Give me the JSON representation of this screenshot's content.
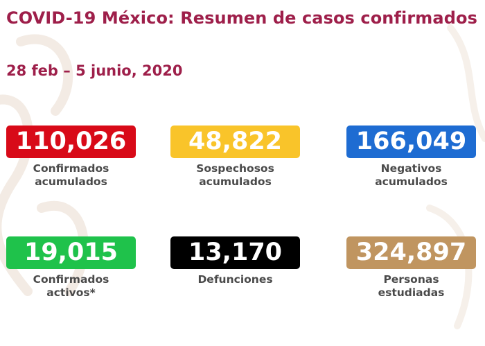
{
  "header": {
    "title": "COVID-19 México: Resumen de casos confirmados",
    "date_range": "28 feb – 5 junio, 2020"
  },
  "stats": [
    {
      "value": "110,026",
      "label": "Confirmados\nacumulados",
      "color": "#d80a18",
      "text_color": "#ffffff"
    },
    {
      "value": "48,822",
      "label": "Sospechosos\nacumulados",
      "color": "#f9c42a",
      "text_color": "#ffffff"
    },
    {
      "value": "166,049",
      "label": "Negativos\nacumulados",
      "color": "#1e6cd2",
      "text_color": "#ffffff"
    },
    {
      "value": "19,015",
      "label": "Confirmados\nactivos*",
      "color": "#1fc24b",
      "text_color": "#ffffff"
    },
    {
      "value": "13,170",
      "label": "Defunciones",
      "color": "#000000",
      "text_color": "#ffffff"
    },
    {
      "value": "324,897",
      "label": "Personas\nestudiadas",
      "color": "#c09560",
      "text_color": "#ffffff"
    }
  ],
  "colors": {
    "title": "#9e1f4a",
    "label": "#4a4a4a"
  }
}
